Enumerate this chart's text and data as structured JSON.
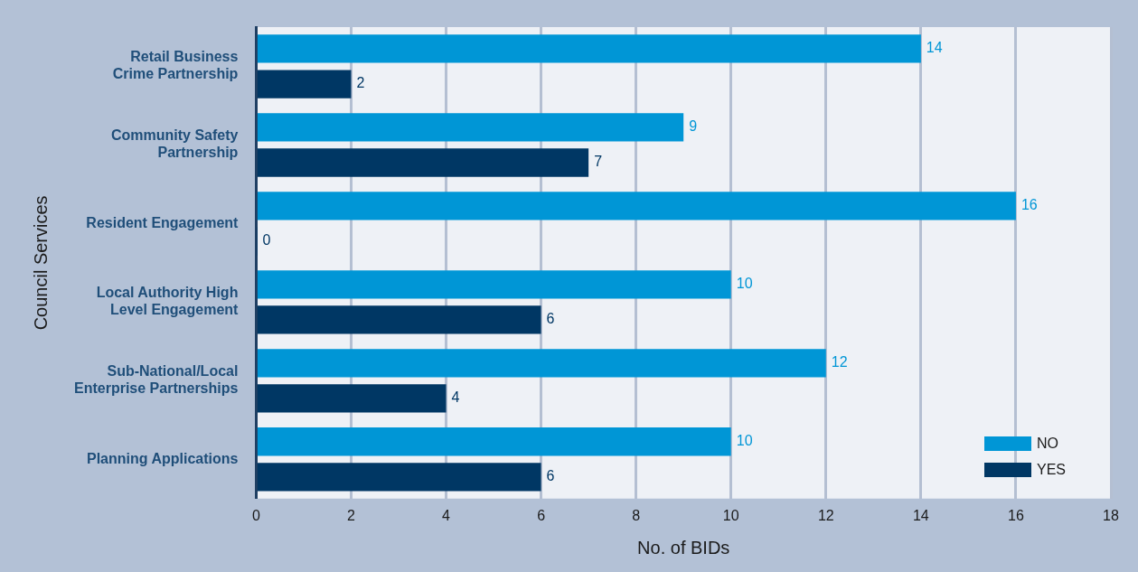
{
  "chart_data": {
    "type": "bar",
    "orientation": "horizontal",
    "ylabel": "Council Services",
    "xlabel": "No. of BIDs",
    "categories": [
      "Retail Business Crime Partnership",
      "Community Safety Partnership",
      "Resident Engagement",
      "Local Authority High Level Engagement",
      "Sub-National/Local Enterprise Partnerships",
      "Planning Applications"
    ],
    "series": [
      {
        "name": "NO",
        "color": "#0096d6",
        "values": [
          14,
          9,
          16,
          10,
          12,
          10
        ]
      },
      {
        "name": "YES",
        "color": "#003764",
        "values": [
          2,
          7,
          0,
          6,
          4,
          6
        ]
      }
    ],
    "xlim": [
      0,
      18
    ],
    "xticks": [
      0,
      2,
      4,
      6,
      8,
      10,
      12,
      14,
      16,
      18
    ],
    "grid": "x",
    "legend": "bottom right",
    "data_labels": true
  }
}
